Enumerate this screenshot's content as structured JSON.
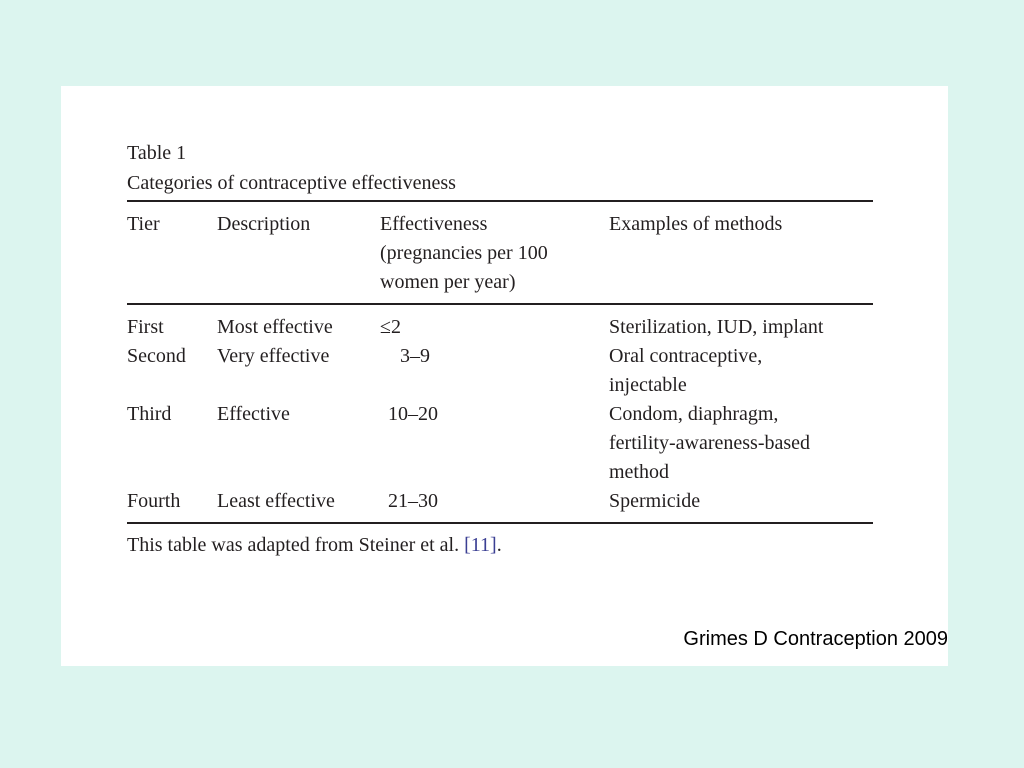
{
  "table": {
    "label": "Table 1",
    "caption": "Categories of contraceptive effectiveness",
    "headers": {
      "tier": "Tier",
      "description": "Description",
      "effectiveness": [
        "Effectiveness",
        "(pregnancies per 100",
        "women per year)"
      ],
      "examples": "Examples of methods"
    },
    "rows": [
      {
        "tier": "First",
        "description": "Most effective",
        "effectiveness": "≤2",
        "examples": [
          "Sterilization, IUD, implant"
        ]
      },
      {
        "tier": "Second",
        "description": "Very effective",
        "effectiveness": "3–9",
        "examples": [
          "Oral contraceptive,",
          "injectable"
        ]
      },
      {
        "tier": "Third",
        "description": "Effective",
        "effectiveness": "10–20",
        "examples": [
          "Condom, diaphragm,",
          "fertility-awareness-based",
          "method"
        ]
      },
      {
        "tier": "Fourth",
        "description": "Least effective",
        "effectiveness": "21–30",
        "examples": [
          "Spermicide"
        ]
      }
    ],
    "footnote": {
      "text": "This table was adapted from Steiner et al. ",
      "ref": "[11]",
      "end": "."
    }
  },
  "citation": "Grimes D Contraception 2009",
  "colors": {
    "background": "#dcf5ef",
    "panel": "#ffffff",
    "text": "#231f20",
    "reference_link": "#3b3f93"
  }
}
